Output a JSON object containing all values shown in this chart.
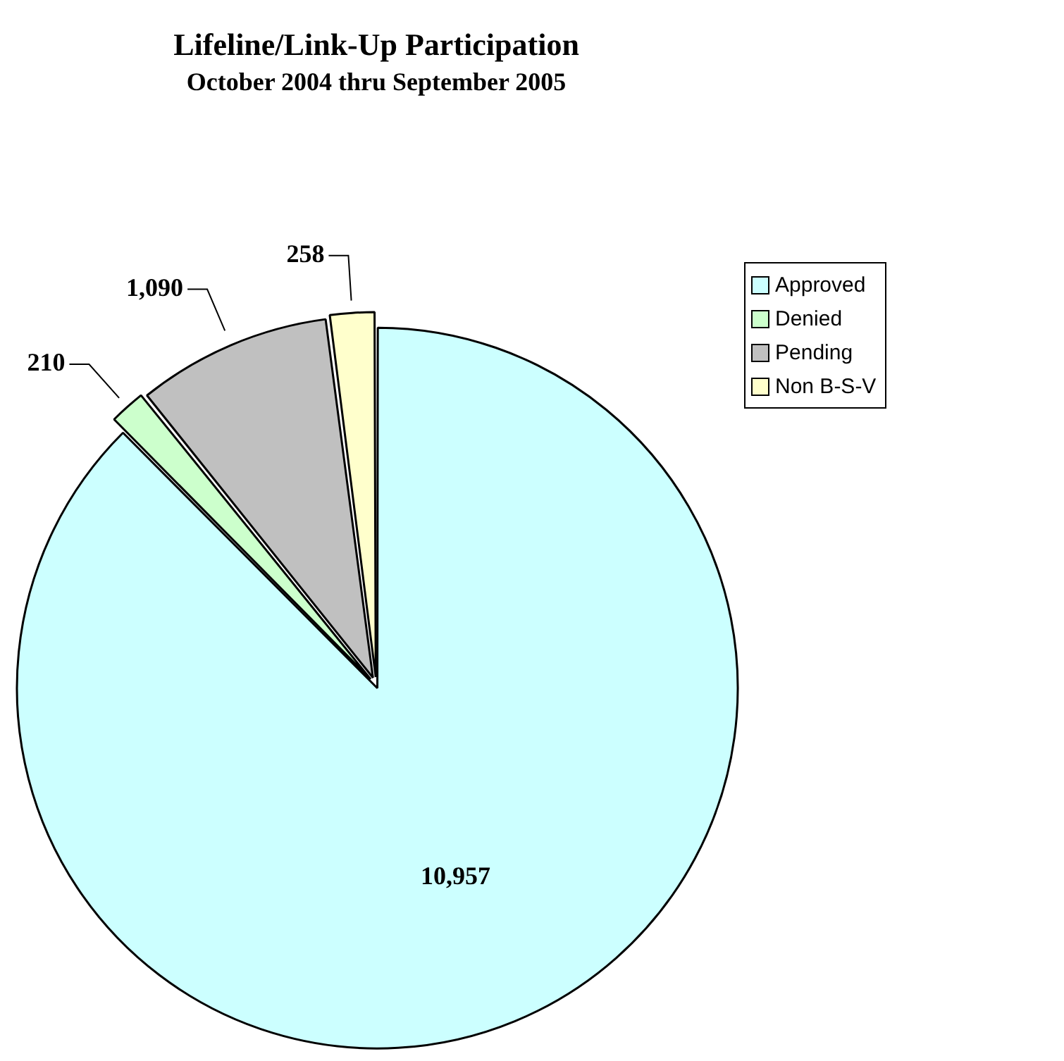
{
  "chart_data": {
    "type": "pie",
    "title": "Lifeline/Link-Up Participation",
    "subtitle": "October 2004 thru September 2005",
    "categories": [
      "Approved",
      "Denied",
      "Pending",
      "Non B-S-V"
    ],
    "values": [
      10957,
      210,
      1090,
      258
    ],
    "value_labels": [
      "10,957",
      "210",
      "1,090",
      "258"
    ],
    "colors": [
      "#ccffff",
      "#ccffcc",
      "#c0c0c0",
      "#ffffcc"
    ],
    "legend": "right"
  }
}
